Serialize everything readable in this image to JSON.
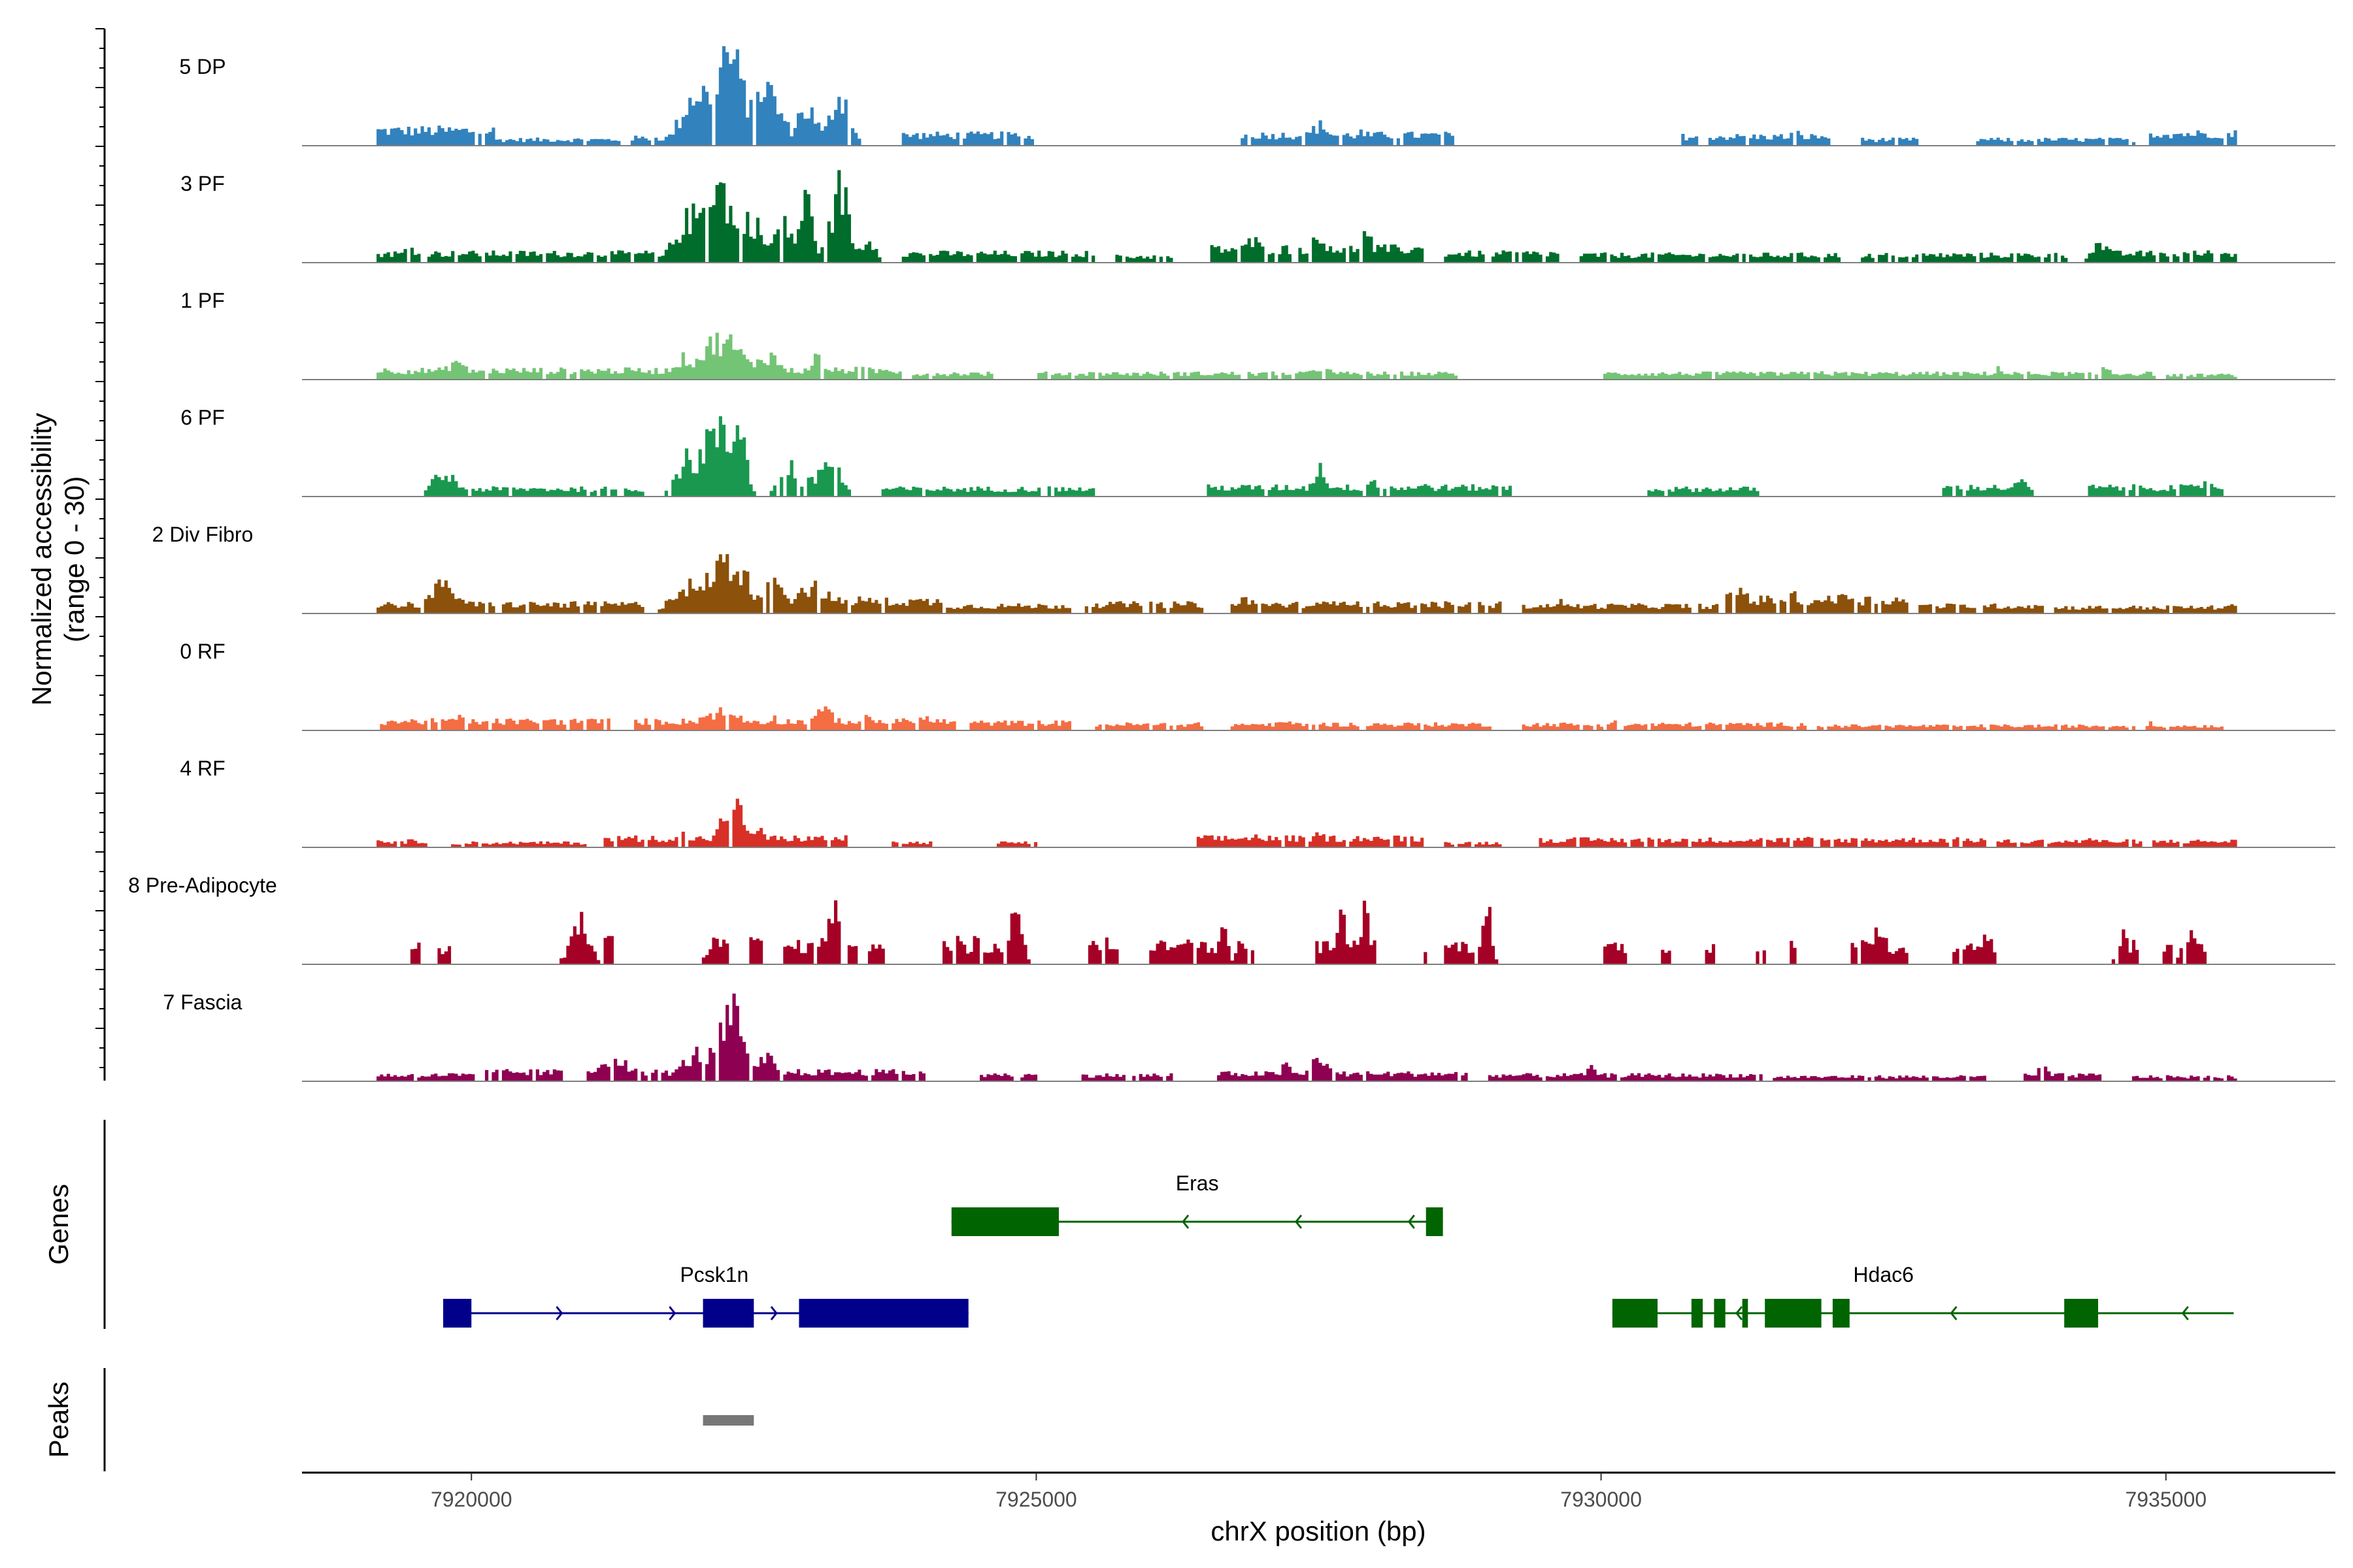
{
  "chart_data": {
    "type": "coverage",
    "x_axis_title": "chrX position (bp)",
    "coverage_y_title_line1": "Normalized accessibility",
    "coverage_y_title_line2": "(range 0 - 30)",
    "genes_title": "Genes",
    "peaks_title": "Peaks",
    "xlim": [
      7918500,
      7936500
    ],
    "ylim": [
      0,
      30
    ],
    "x_ticks": [
      7920000,
      7925000,
      7930000,
      7935000
    ],
    "x_tick_labels": [
      "7920000",
      "7925000",
      "7930000",
      "7935000"
    ],
    "tracks": [
      {
        "name": "5 DP",
        "color": "#3182BD",
        "blocks": [
          [
            7919150,
            7920200,
            5
          ],
          [
            7920000,
            7921300,
            2
          ],
          [
            7921400,
            7922400,
            2.5
          ],
          [
            7923800,
            7924900,
            3.5
          ],
          [
            7926800,
            7928700,
            3.5
          ],
          [
            7930700,
            7932000,
            3
          ],
          [
            7932300,
            7932800,
            2
          ],
          [
            7933300,
            7934700,
            2
          ],
          [
            7934800,
            7935600,
            4
          ]
        ],
        "peaks": [
          [
            7919350,
            4.5,
            140
          ],
          [
            7919650,
            4,
            120
          ],
          [
            7922250,
            30,
            200
          ],
          [
            7922000,
            18,
            200
          ],
          [
            7922550,
            20,
            220
          ],
          [
            7922950,
            12,
            140
          ],
          [
            7923250,
            17,
            120
          ],
          [
            7924900,
            4,
            60
          ],
          [
            7927500,
            6.5,
            140
          ],
          [
            7927850,
            4.5,
            80
          ],
          [
            7931700,
            5,
            60
          ],
          [
            7935400,
            4,
            80
          ]
        ]
      },
      {
        "name": "3 PF",
        "color": "#006D2C",
        "blocks": [
          [
            7919150,
            7921600,
            3
          ],
          [
            7921700,
            7923200,
            4
          ],
          [
            7923250,
            7923500,
            3
          ],
          [
            7923800,
            7925500,
            3
          ],
          [
            7925700,
            7926200,
            2
          ],
          [
            7926500,
            7928400,
            4.5
          ],
          [
            7928600,
            7929600,
            3
          ],
          [
            7929800,
            7932100,
            2.5
          ],
          [
            7932300,
            7934100,
            2.5
          ],
          [
            7934300,
            7935600,
            3
          ]
        ],
        "peaks": [
          [
            7919450,
            5,
            100
          ],
          [
            7921200,
            3,
            120
          ],
          [
            7922150,
            26,
            200
          ],
          [
            7921950,
            15,
            200
          ],
          [
            7922450,
            14,
            160
          ],
          [
            7922750,
            12,
            140
          ],
          [
            7922950,
            20,
            90
          ],
          [
            7923250,
            24,
            110
          ],
          [
            7923500,
            8,
            100
          ],
          [
            7926900,
            7,
            120
          ],
          [
            7927500,
            7,
            200
          ],
          [
            7927900,
            9,
            100
          ],
          [
            7934400,
            6,
            120
          ],
          [
            7935400,
            5,
            60
          ]
        ]
      },
      {
        "name": "1 PF",
        "color": "#74C476",
        "blocks": [
          [
            7919150,
            7920600,
            3
          ],
          [
            7920650,
            7923800,
            3
          ],
          [
            7923900,
            7924600,
            2
          ],
          [
            7925000,
            7928700,
            2
          ],
          [
            7930000,
            7934900,
            2
          ],
          [
            7935000,
            7935600,
            1.5
          ]
        ],
        "peaks": [
          [
            7919850,
            6,
            120
          ],
          [
            7922200,
            13,
            260
          ],
          [
            7921900,
            7,
            200
          ],
          [
            7922600,
            8,
            180
          ],
          [
            7923050,
            7,
            120
          ],
          [
            7923400,
            5,
            80
          ],
          [
            7927500,
            4,
            140
          ],
          [
            7931900,
            3,
            100
          ],
          [
            7933500,
            4,
            60
          ],
          [
            7934450,
            4,
            80
          ]
        ]
      },
      {
        "name": "6 PF",
        "color": "#1A9850",
        "blocks": [
          [
            7919550,
            7919950,
            3
          ],
          [
            7920000,
            7921500,
            2.5
          ],
          [
            7923600,
            7925500,
            2.5
          ],
          [
            7926500,
            7929200,
            3
          ],
          [
            7930400,
            7931400,
            2.5
          ],
          [
            7933000,
            7933800,
            3
          ],
          [
            7934300,
            7935500,
            3
          ]
        ],
        "peaks": [
          [
            7919750,
            7,
            160
          ],
          [
            7922150,
            21,
            220
          ],
          [
            7922350,
            27,
            90
          ],
          [
            7921900,
            12,
            150
          ],
          [
            7922800,
            10,
            120
          ],
          [
            7923150,
            12,
            140
          ],
          [
            7923000,
            5,
            120
          ],
          [
            7925050,
            4,
            80
          ],
          [
            7927500,
            9,
            100
          ],
          [
            7927950,
            6,
            80
          ],
          [
            7928450,
            4,
            80
          ],
          [
            7933700,
            5,
            80
          ],
          [
            7935350,
            5,
            100
          ]
        ]
      },
      {
        "name": "2 Div Fibro",
        "color": "#8C510A",
        "blocks": [
          [
            7919150,
            7921500,
            3
          ],
          [
            7921700,
            7924150,
            4
          ],
          [
            7924200,
            7925300,
            2.5
          ],
          [
            7925400,
            7926450,
            3
          ],
          [
            7926700,
            7929100,
            3
          ],
          [
            7929300,
            7931100,
            2.5
          ],
          [
            7931200,
            7932700,
            4.5
          ],
          [
            7932800,
            7933900,
            2.5
          ],
          [
            7934000,
            7935600,
            2
          ]
        ],
        "peaks": [
          [
            7919750,
            9,
            200
          ],
          [
            7922250,
            17,
            260
          ],
          [
            7921900,
            9,
            200
          ],
          [
            7922650,
            12,
            180
          ],
          [
            7923000,
            9,
            220
          ],
          [
            7923450,
            5,
            100
          ],
          [
            7926850,
            5,
            100
          ],
          [
            7927700,
            5,
            150
          ],
          [
            7929600,
            4,
            100
          ],
          [
            7931200,
            8,
            140
          ],
          [
            7931650,
            6,
            160
          ],
          [
            7932150,
            7,
            100
          ],
          [
            7935550,
            3,
            40
          ]
        ]
      },
      {
        "name": "0 RF",
        "color": "#F46D43",
        "blocks": [
          [
            7919150,
            7921200,
            3
          ],
          [
            7921400,
            7924300,
            3
          ],
          [
            7924400,
            7925300,
            2.5
          ],
          [
            7925500,
            7926450,
            2
          ],
          [
            7926700,
            7929000,
            2
          ],
          [
            7929300,
            7931800,
            2
          ],
          [
            7931900,
            7934700,
            1.5
          ],
          [
            7934800,
            7935500,
            1.5
          ]
        ],
        "peaks": [
          [
            7919850,
            4,
            200
          ],
          [
            7920400,
            3,
            150
          ],
          [
            7922200,
            6,
            300
          ],
          [
            7922650,
            4,
            150
          ],
          [
            7923100,
            6,
            180
          ],
          [
            7923500,
            4,
            100
          ],
          [
            7924000,
            4,
            150
          ],
          [
            7927200,
            3,
            100
          ],
          [
            7930100,
            3.5,
            120
          ],
          [
            7934850,
            3,
            60
          ]
        ]
      },
      {
        "name": "4 RF",
        "color": "#D73027",
        "blocks": [
          [
            7919150,
            7919600,
            2
          ],
          [
            7919800,
            7921000,
            1.5
          ],
          [
            7921150,
            7923300,
            3
          ],
          [
            7923700,
            7924050,
            1.5
          ],
          [
            7924650,
            7925000,
            1.5
          ],
          [
            7926400,
            7928400,
            3
          ],
          [
            7928600,
            7929100,
            1.5
          ],
          [
            7929400,
            7933400,
            2.5
          ],
          [
            7933500,
            7935600,
            2
          ]
        ],
        "peaks": [
          [
            7921850,
            5,
            90
          ],
          [
            7922300,
            14,
            140
          ],
          [
            7922500,
            6,
            120
          ],
          [
            7921500,
            2.5,
            100
          ],
          [
            7926900,
            4,
            90
          ],
          [
            7927500,
            4,
            120
          ],
          [
            7927950,
            3.5,
            100
          ],
          [
            7931800,
            3,
            60
          ],
          [
            7933200,
            3,
            80
          ],
          [
            7934300,
            3,
            100
          ]
        ]
      },
      {
        "name": "8 Pre-Adipocyte",
        "color": "#A50026",
        "blocks": [
          [
            7919450,
            7919550,
            7
          ],
          [
            7919700,
            7919800,
            5
          ],
          [
            7920850,
            7921050,
            9
          ],
          [
            7921150,
            7921250,
            7
          ],
          [
            7922100,
            7922250,
            8
          ],
          [
            7922450,
            7922550,
            7
          ],
          [
            7922750,
            7923000,
            6
          ],
          [
            7923050,
            7923400,
            7
          ],
          [
            7923500,
            7923650,
            6
          ],
          [
            7924150,
            7924900,
            6
          ],
          [
            7925450,
            7925700,
            6
          ],
          [
            7926000,
            7926650,
            6
          ],
          [
            7926750,
            7926900,
            6
          ],
          [
            7927450,
            7927700,
            6
          ],
          [
            7927800,
            7928000,
            6
          ],
          [
            7928350,
            7928450,
            6
          ],
          [
            7928600,
            7929000,
            6
          ],
          [
            7930000,
            7930200,
            6
          ],
          [
            7930500,
            7930600,
            6
          ],
          [
            7930900,
            7931000,
            6
          ],
          [
            7931350,
            7931450,
            6
          ],
          [
            7931650,
            7931700,
            6
          ],
          [
            7932200,
            7932500,
            6
          ],
          [
            7932600,
            7932700,
            6
          ],
          [
            7933100,
            7933350,
            6
          ],
          [
            7934600,
            7934750,
            6
          ],
          [
            7934950,
            7935050,
            6
          ],
          [
            7935100,
            7935350,
            6
          ]
        ],
        "peaks": [
          [
            7920950,
            13,
            120
          ],
          [
            7922150,
            12,
            80
          ],
          [
            7923250,
            20,
            90
          ],
          [
            7923150,
            15,
            60
          ],
          [
            7924300,
            12,
            40
          ],
          [
            7924450,
            12,
            40
          ],
          [
            7924800,
            20,
            80
          ],
          [
            7925600,
            12,
            60
          ],
          [
            7926350,
            12,
            80
          ],
          [
            7926650,
            11,
            50
          ],
          [
            7927700,
            17,
            60
          ],
          [
            7927900,
            20,
            60
          ],
          [
            7928950,
            16,
            40
          ],
          [
            7929000,
            18,
            40
          ],
          [
            7932450,
            13,
            100
          ],
          [
            7933400,
            13,
            60
          ],
          [
            7934600,
            11,
            60
          ],
          [
            7935200,
            12,
            80
          ]
        ]
      },
      {
        "name": "7 Fascia",
        "color": "#8E0152",
        "blocks": [
          [
            7919150,
            7920000,
            2
          ],
          [
            7920100,
            7920800,
            3
          ],
          [
            7921000,
            7924000,
            3
          ],
          [
            7924500,
            7925000,
            2
          ],
          [
            7925400,
            7926200,
            2
          ],
          [
            7926600,
            7928800,
            2.5
          ],
          [
            7929000,
            7931400,
            2
          ],
          [
            7931500,
            7933400,
            1.5
          ],
          [
            7933700,
            7934400,
            2
          ],
          [
            7934700,
            7935600,
            1.5
          ]
        ],
        "peaks": [
          [
            7919800,
            3,
            80
          ],
          [
            7921250,
            8,
            200
          ],
          [
            7922250,
            16,
            200
          ],
          [
            7922300,
            24,
            110
          ],
          [
            7922000,
            9,
            200
          ],
          [
            7922600,
            8,
            100
          ],
          [
            7924650,
            3,
            60
          ],
          [
            7927500,
            8,
            120
          ],
          [
            7927200,
            5,
            80
          ],
          [
            7929900,
            4,
            100
          ],
          [
            7933900,
            4,
            100
          ]
        ]
      }
    ],
    "genes": [
      {
        "name": "Eras",
        "strand": "-",
        "color": "#006400",
        "start": 7924250,
        "end": 7928600,
        "exons": [
          [
            7924250,
            7925200
          ],
          [
            7928450,
            7928600
          ]
        ],
        "arrows": [
          7926300,
          7927300,
          7928300
        ]
      },
      {
        "name": "Pcsk1n",
        "strand": "+",
        "color": "#00008B",
        "start": 7919750,
        "end": 7924400,
        "exons": [
          [
            7919750,
            7920000
          ],
          [
            7922050,
            7922500
          ],
          [
            7922900,
            7924400
          ]
        ],
        "arrows": [
          7920800,
          7921800,
          7922700
        ]
      },
      {
        "name": "Hdac6",
        "strand": "-",
        "color": "#006400",
        "start": 7930100,
        "end": 7935600,
        "exons": [
          [
            7930100,
            7930500
          ],
          [
            7930800,
            7930900
          ],
          [
            7931000,
            7931100
          ],
          [
            7931250,
            7931300
          ],
          [
            7931450,
            7931950
          ],
          [
            7932050,
            7932200
          ],
          [
            7934100,
            7934400
          ]
        ],
        "arrows": [
          7931200,
          7933100,
          7934150,
          7935150
        ]
      }
    ],
    "peak_regions": [
      [
        7922050,
        7922500
      ]
    ],
    "peak_color": "#777777"
  }
}
